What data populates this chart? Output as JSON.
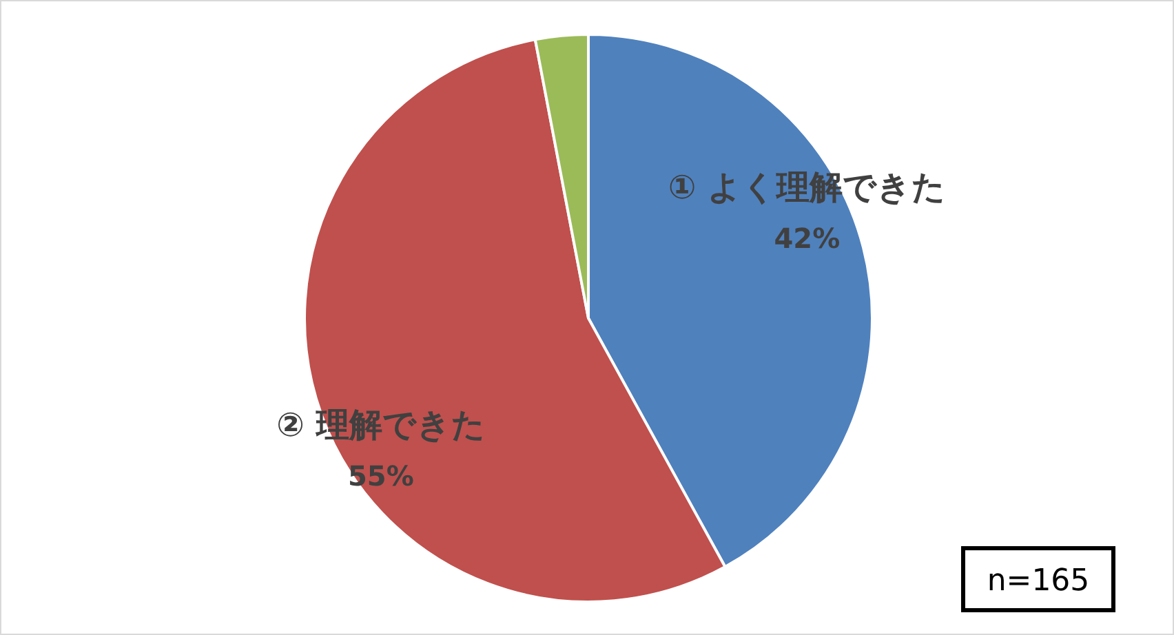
{
  "chart_data": {
    "type": "pie",
    "categories": [
      "① よく理解できた",
      "② 理解できた",
      null
    ],
    "values": [
      42,
      55,
      3
    ],
    "colors": [
      "#4f81bd",
      "#c0504d",
      "#9bbb59"
    ],
    "value_labels": [
      "42%",
      "55%",
      null
    ],
    "annotations": [
      "n=165"
    ]
  }
}
